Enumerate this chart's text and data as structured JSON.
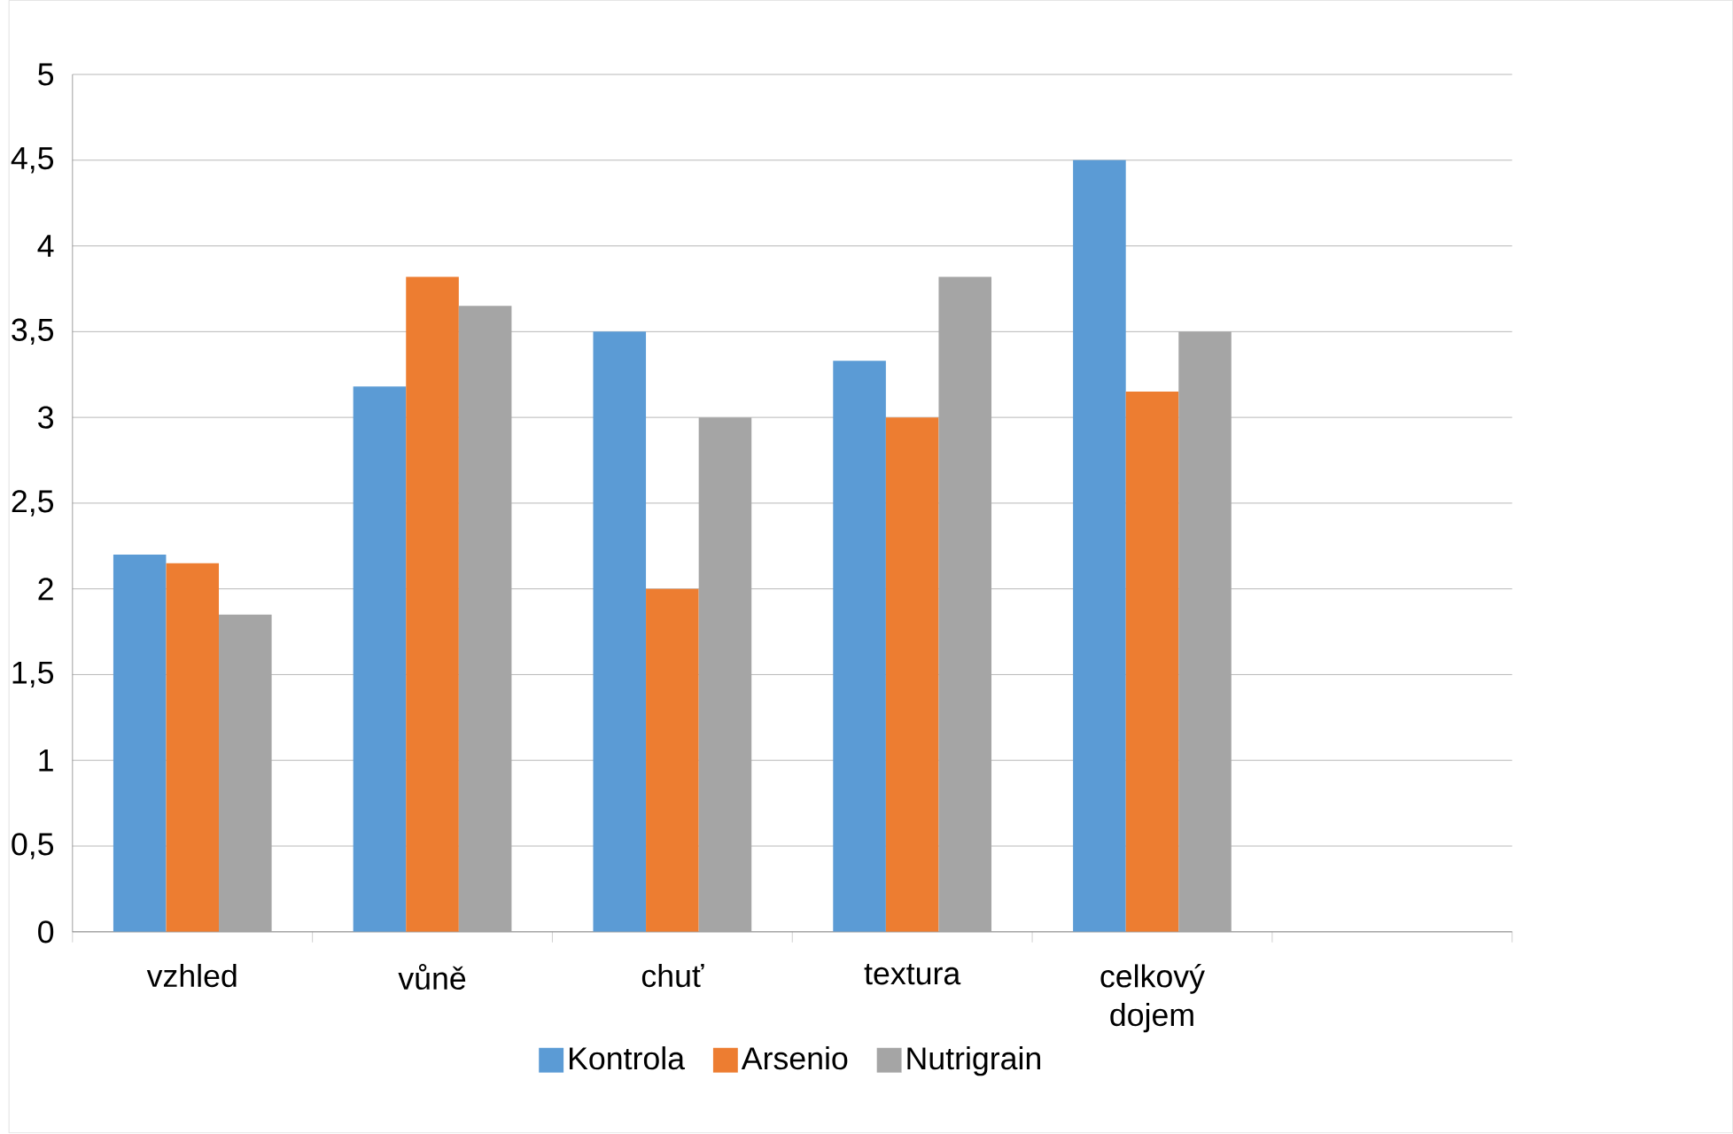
{
  "chart_data": {
    "type": "bar",
    "categories": [
      "vzhled",
      "vůně",
      "chuť",
      "textura",
      "celkový dojem",
      null
    ],
    "series": [
      {
        "name": "Kontrola",
        "color": "#5b9bd5",
        "values": [
          2.2,
          3.18,
          3.5,
          3.33,
          4.5,
          null
        ]
      },
      {
        "name": "Arsenio",
        "color": "#ed7d31",
        "values": [
          2.15,
          3.82,
          2.0,
          3.0,
          3.15,
          null
        ]
      },
      {
        "name": "Nutrigrain",
        "color": "#a5a5a5",
        "values": [
          1.85,
          3.65,
          3.0,
          3.82,
          3.5,
          null
        ]
      }
    ],
    "ylim": [
      0,
      5
    ],
    "yticks": [
      0,
      {
        "value": 0.5,
        "label": "0,5"
      },
      1,
      {
        "value": 1.5,
        "label": "1,5"
      },
      2,
      {
        "value": 2.5,
        "label": "2,5"
      },
      3,
      {
        "value": 3.5,
        "label": "3,5"
      },
      4,
      {
        "value": 4.5,
        "label": "4,5"
      },
      5
    ],
    "grid": "y",
    "legend": "bottom"
  }
}
